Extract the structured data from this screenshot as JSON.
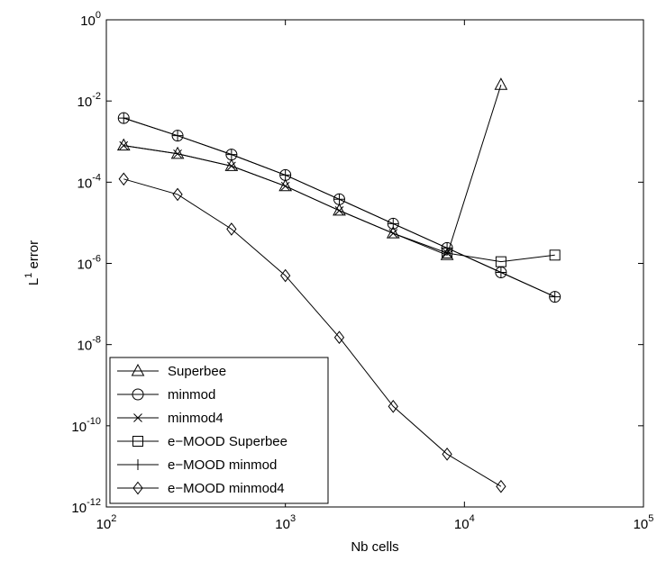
{
  "chart_data": {
    "type": "line",
    "xlabel": "Nb cells",
    "ylabel": "L¹ error",
    "ylabel_base": "L",
    "ylabel_sup": "1",
    "ylabel_rest": " error",
    "x_scale": "log",
    "y_scale": "log",
    "xlim": [
      100,
      100000
    ],
    "ylim": [
      1e-12,
      1
    ],
    "grid": false,
    "legend_position": "bottom-left",
    "x_ticks": [
      {
        "value": 100,
        "base": "10",
        "exp": "2"
      },
      {
        "value": 1000,
        "base": "10",
        "exp": "3"
      },
      {
        "value": 10000,
        "base": "10",
        "exp": "4"
      },
      {
        "value": 100000,
        "base": "10",
        "exp": "5"
      }
    ],
    "y_ticks": [
      {
        "value": 1e-12,
        "base": "10",
        "exp": "-12"
      },
      {
        "value": 1e-10,
        "base": "10",
        "exp": "-10"
      },
      {
        "value": 1e-08,
        "base": "10",
        "exp": "-8"
      },
      {
        "value": 1e-06,
        "base": "10",
        "exp": "-6"
      },
      {
        "value": 0.0001,
        "base": "10",
        "exp": "-4"
      },
      {
        "value": 0.01,
        "base": "10",
        "exp": "-2"
      },
      {
        "value": 1,
        "base": "10",
        "exp": "0"
      }
    ],
    "series": [
      {
        "name": "Superbee",
        "marker": "triangle",
        "x": [
          125,
          250,
          500,
          1000,
          2000,
          4000,
          8000,
          16000
        ],
        "y": [
          0.0008,
          0.0005,
          0.00025,
          8e-05,
          2e-05,
          5.5e-06,
          1.6e-06,
          0.025
        ]
      },
      {
        "name": "minmod",
        "marker": "circle",
        "x": [
          125,
          250,
          500,
          1000,
          2000,
          4000,
          8000,
          16000,
          32000
        ],
        "y": [
          0.0038,
          0.0014,
          0.00048,
          0.00015,
          3.8e-05,
          9.5e-06,
          2.4e-06,
          6e-07,
          1.5e-07
        ]
      },
      {
        "name": "minmod4",
        "marker": "x",
        "x": [
          125,
          250,
          500,
          1000,
          2000,
          4000,
          8000
        ],
        "y": [
          0.0008,
          0.0005,
          0.00025,
          8e-05,
          2e-05,
          5.5e-06,
          1.8e-06
        ]
      },
      {
        "name": "e−MOOD Superbee",
        "marker": "square",
        "x": [
          8000,
          16000,
          32000
        ],
        "y": [
          1.8e-06,
          1.1e-06,
          1.6e-06
        ]
      },
      {
        "name": "e−MOOD minmod",
        "marker": "plus",
        "x": [
          125,
          250,
          500,
          1000,
          2000,
          4000,
          8000,
          16000,
          32000
        ],
        "y": [
          0.0038,
          0.0014,
          0.00048,
          0.00015,
          3.8e-05,
          9.5e-06,
          2.4e-06,
          6e-07,
          1.5e-07
        ]
      },
      {
        "name": "e−MOOD minmod4",
        "marker": "diamond",
        "x": [
          125,
          250,
          500,
          1000,
          2000,
          4000,
          8000,
          16000
        ],
        "y": [
          0.00012,
          5e-05,
          7e-06,
          5e-07,
          1.5e-08,
          3e-10,
          2e-11,
          3.2e-12
        ]
      }
    ]
  }
}
